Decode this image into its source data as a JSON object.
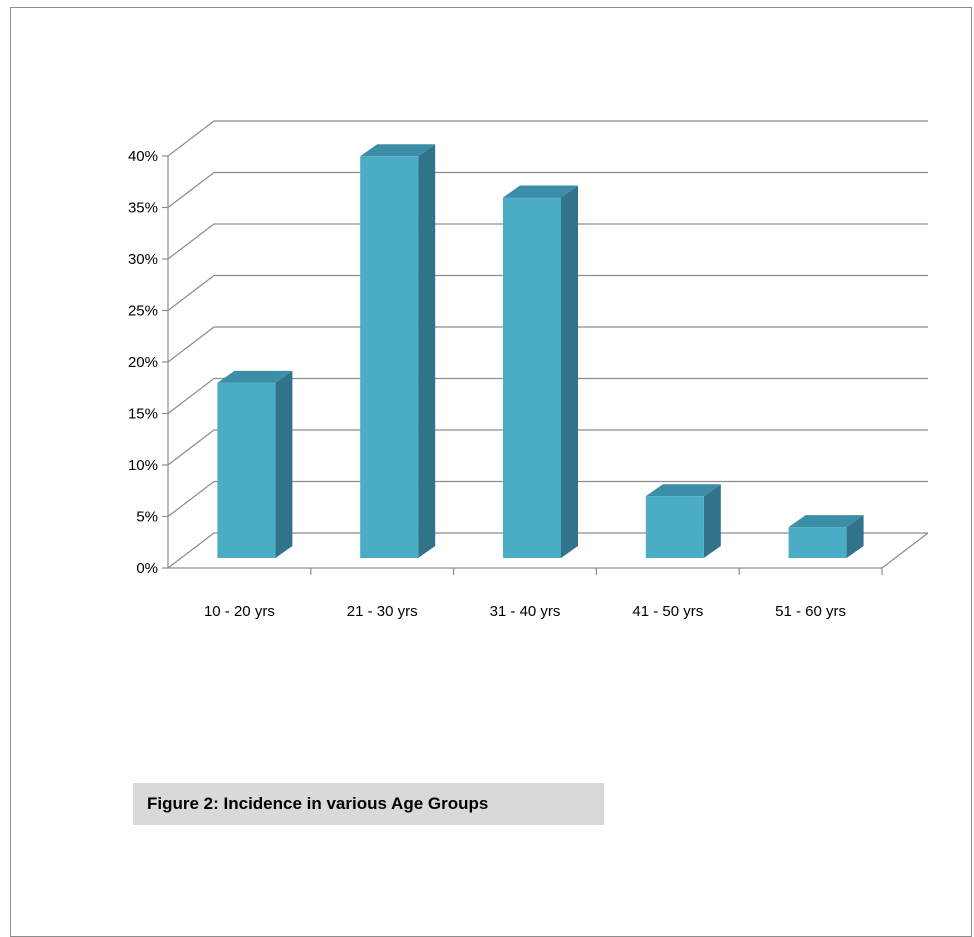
{
  "caption": "Figure 2: Incidence in various Age Groups",
  "colors": {
    "bar_front": "#4bacc6",
    "bar_side": "#31738a",
    "bar_top": "#3b8ea5",
    "grid": "#8c8c8c",
    "caption_bg": "#d9d9d9"
  },
  "chart_data": {
    "type": "bar",
    "style": "3d-column",
    "categories": [
      "10 - 20 yrs",
      "21 - 30 yrs",
      "31 - 40 yrs",
      "41 - 50 yrs",
      "51 - 60 yrs"
    ],
    "values": [
      17,
      39,
      35,
      6,
      3
    ],
    "y_ticks": [
      "0%",
      "5%",
      "10%",
      "15%",
      "20%",
      "25%",
      "30%",
      "35%",
      "40%"
    ],
    "ylim": [
      0,
      40
    ],
    "grid": true,
    "legend": "none",
    "title": "",
    "xlabel": "",
    "ylabel": ""
  }
}
